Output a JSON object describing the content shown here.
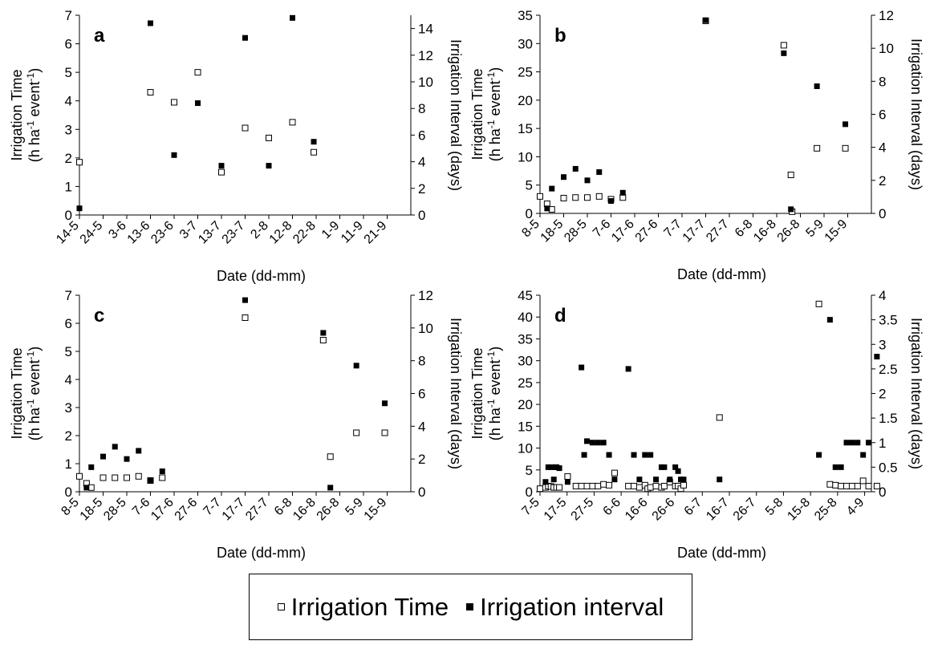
{
  "chart_data": [
    {
      "type": "scatter",
      "panel_label": "a",
      "xlabel": "Date (dd-mm)",
      "ylabel_left": [
        "Irrigation Time",
        "(h ha",
        "-1",
        " event",
        "-1",
        ")"
      ],
      "ylabel_right": "Irrigation Interval (days)",
      "left_ylim": [
        0,
        7
      ],
      "left_ticks": [
        0,
        1,
        2,
        3,
        4,
        5,
        6,
        7
      ],
      "right_ylim": [
        0,
        15
      ],
      "right_ticks": [
        0,
        2,
        4,
        6,
        8,
        10,
        12,
        14
      ],
      "x_tick_labels": [
        "14-5",
        "24-5",
        "3-6",
        "13-6",
        "23-6",
        "3-7",
        "13-7",
        "23-7",
        "2-8",
        "12-8",
        "22-8",
        "1-9",
        "11-9",
        "21-9"
      ],
      "x_domain": [
        0,
        140
      ],
      "series": [
        {
          "name": "Irrigation Time",
          "axis": "left",
          "marker": "open",
          "points": [
            [
              0,
              1.85
            ],
            [
              30,
              4.3
            ],
            [
              40,
              3.95
            ],
            [
              50,
              5.0
            ],
            [
              60,
              1.5
            ],
            [
              70,
              3.05
            ],
            [
              80,
              2.7
            ],
            [
              90,
              3.25
            ],
            [
              99,
              2.2
            ]
          ]
        },
        {
          "name": "Irrigation interval",
          "axis": "right",
          "marker": "filled",
          "points": [
            [
              0,
              0.5
            ],
            [
              30,
              14.4
            ],
            [
              40,
              4.5
            ],
            [
              50,
              8.4
            ],
            [
              60,
              3.7
            ],
            [
              70,
              13.3
            ],
            [
              80,
              3.7
            ],
            [
              90,
              14.8
            ],
            [
              99,
              5.5
            ]
          ]
        }
      ]
    },
    {
      "type": "scatter",
      "panel_label": "b",
      "xlabel": "Date (dd-mm)",
      "ylabel_left": [
        "Irrigation Time",
        "(h ha",
        "-1",
        " event",
        "-1",
        ")"
      ],
      "ylabel_right": "Irrigation Interval (days)",
      "left_ylim": [
        0,
        35
      ],
      "left_ticks": [
        0,
        5,
        10,
        15,
        20,
        25,
        30,
        35
      ],
      "right_ylim": [
        0,
        12
      ],
      "right_ticks": [
        0,
        2,
        4,
        6,
        8,
        10,
        12
      ],
      "x_tick_labels": [
        "8-5",
        "18-5",
        "28-5",
        "7-6",
        "17-6",
        "27-6",
        "7-7",
        "17-7",
        "27-7",
        "6-8",
        "16-8",
        "26-8",
        "5-9",
        "15-9"
      ],
      "x_domain": [
        0,
        140
      ],
      "series": [
        {
          "name": "Irrigation Time",
          "axis": "left",
          "marker": "open",
          "points": [
            [
              0,
              3.0
            ],
            [
              3,
              1.7
            ],
            [
              5,
              0.7
            ],
            [
              10,
              2.7
            ],
            [
              15,
              2.8
            ],
            [
              20,
              2.8
            ],
            [
              25,
              3.0
            ],
            [
              30,
              2.5
            ],
            [
              35,
              2.8
            ],
            [
              70,
              34.0
            ],
            [
              103,
              29.7
            ],
            [
              106,
              6.8
            ],
            [
              106.5,
              0.3
            ],
            [
              117,
              11.5
            ],
            [
              129,
              11.5
            ]
          ]
        },
        {
          "name": "Irrigation interval",
          "axis": "right",
          "marker": "filled",
          "points": [
            [
              3,
              0.3
            ],
            [
              5,
              1.5
            ],
            [
              10,
              2.2
            ],
            [
              15,
              2.7
            ],
            [
              20,
              2.0
            ],
            [
              25,
              2.5
            ],
            [
              30,
              0.75
            ],
            [
              35,
              1.25
            ],
            [
              70,
              11.7
            ],
            [
              103,
              9.7
            ],
            [
              106,
              0.25
            ],
            [
              117,
              7.7
            ],
            [
              129,
              5.4
            ]
          ]
        }
      ]
    },
    {
      "type": "scatter",
      "panel_label": "c",
      "xlabel": "Date (dd-mm)",
      "ylabel_left": [
        "Irrigation Time",
        "(h ha",
        "-1",
        " event",
        "-1",
        ")"
      ],
      "ylabel_right": "Irrigation Interval (days)",
      "left_ylim": [
        0,
        7
      ],
      "left_ticks": [
        0,
        1,
        2,
        3,
        4,
        5,
        6,
        7
      ],
      "right_ylim": [
        0,
        12
      ],
      "right_ticks": [
        0,
        2,
        4,
        6,
        8,
        10,
        12
      ],
      "x_tick_labels": [
        "8-5",
        "18-5",
        "28-5",
        "7-6",
        "17-6",
        "27-6",
        "7-7",
        "17-7",
        "27-7",
        "6-8",
        "16-8",
        "26-8",
        "5-9",
        "15-9"
      ],
      "x_domain": [
        0,
        140
      ],
      "series": [
        {
          "name": "Irrigation Time",
          "axis": "left",
          "marker": "open",
          "points": [
            [
              0,
              0.55
            ],
            [
              3,
              0.3
            ],
            [
              5,
              0.15
            ],
            [
              10,
              0.5
            ],
            [
              15,
              0.5
            ],
            [
              20,
              0.5
            ],
            [
              25,
              0.55
            ],
            [
              30,
              0.4
            ],
            [
              35,
              0.5
            ],
            [
              70,
              6.2
            ],
            [
              103,
              5.4
            ],
            [
              106,
              1.25
            ],
            [
              117,
              2.1
            ],
            [
              129,
              2.1
            ]
          ]
        },
        {
          "name": "Irrigation interval",
          "axis": "right",
          "marker": "filled",
          "points": [
            [
              3,
              0.25
            ],
            [
              5,
              1.5
            ],
            [
              10,
              2.15
            ],
            [
              15,
              2.75
            ],
            [
              20,
              2.0
            ],
            [
              25,
              2.5
            ],
            [
              30,
              0.7
            ],
            [
              35,
              1.25
            ],
            [
              70,
              11.7
            ],
            [
              103,
              9.7
            ],
            [
              106,
              0.25
            ],
            [
              117,
              7.7
            ],
            [
              129,
              5.4
            ]
          ]
        }
      ]
    },
    {
      "type": "scatter",
      "panel_label": "d",
      "xlabel": "Date (dd-mm)",
      "ylabel_left": [
        "Irrigation Time",
        "(h ha",
        "-1",
        " event",
        "-1",
        ")"
      ],
      "ylabel_right": "Irrigation Interval (days)",
      "left_ylim": [
        0,
        45
      ],
      "left_ticks": [
        0,
        5,
        10,
        15,
        20,
        25,
        30,
        35,
        40,
        45
      ],
      "right_ylim": [
        0,
        4
      ],
      "right_ticks": [
        0,
        0.5,
        1,
        1.5,
        2,
        2.5,
        3,
        3.5,
        4
      ],
      "x_tick_labels": [
        "7-5",
        "17-5",
        "27-5",
        "6-6",
        "16-6",
        "26-6",
        "6-7",
        "16-7",
        "26-7",
        "5-8",
        "15-8",
        "25-8",
        "4-9"
      ],
      "x_domain": [
        0,
        120
      ],
      "series": [
        {
          "name": "Irrigation Time",
          "axis": "left",
          "marker": "open",
          "points": [
            [
              0,
              0.7
            ],
            [
              2,
              1.0
            ],
            [
              3,
              1.3
            ],
            [
              4,
              1.2
            ],
            [
              5,
              1.0
            ],
            [
              6,
              1.0
            ],
            [
              7,
              1.0
            ],
            [
              10,
              3.5
            ],
            [
              13,
              1.3
            ],
            [
              15,
              1.3
            ],
            [
              17,
              1.3
            ],
            [
              19,
              1.3
            ],
            [
              21,
              1.3
            ],
            [
              23,
              1.7
            ],
            [
              25,
              1.5
            ],
            [
              27,
              4.3
            ],
            [
              32,
              1.3
            ],
            [
              34,
              1.3
            ],
            [
              36,
              1.0
            ],
            [
              38,
              1.5
            ],
            [
              39,
              0.7
            ],
            [
              40,
              1.0
            ],
            [
              42,
              1.3
            ],
            [
              44,
              1.0
            ],
            [
              45,
              1.3
            ],
            [
              47,
              2.2
            ],
            [
              49,
              1.3
            ],
            [
              50,
              1.3
            ],
            [
              51,
              0.7
            ],
            [
              52,
              1.5
            ],
            [
              65,
              17.0
            ],
            [
              101,
              43.0
            ],
            [
              105,
              1.7
            ],
            [
              107,
              1.5
            ],
            [
              109,
              1.3
            ],
            [
              111,
              1.3
            ],
            [
              113,
              1.3
            ],
            [
              115,
              1.3
            ],
            [
              117,
              2.5
            ],
            [
              119,
              1.3
            ],
            [
              122,
              1.3
            ]
          ]
        },
        {
          "name": "Irrigation interval",
          "axis": "right",
          "marker": "filled",
          "points": [
            [
              2,
              0.2
            ],
            [
              3,
              0.5
            ],
            [
              4,
              0.5
            ],
            [
              5,
              0.25
            ],
            [
              5.5,
              0.5
            ],
            [
              6,
              0.5
            ],
            [
              7,
              0.48
            ],
            [
              10,
              0.2
            ],
            [
              15,
              2.53
            ],
            [
              16,
              0.75
            ],
            [
              17,
              1.03
            ],
            [
              19,
              1.0
            ],
            [
              21,
              1.0
            ],
            [
              23,
              1.0
            ],
            [
              25,
              0.75
            ],
            [
              27,
              0.25
            ],
            [
              32,
              2.5
            ],
            [
              34,
              0.75
            ],
            [
              36,
              0.25
            ],
            [
              38,
              0.75
            ],
            [
              40,
              0.75
            ],
            [
              42,
              0.25
            ],
            [
              44,
              0.5
            ],
            [
              45,
              0.5
            ],
            [
              47,
              0.25
            ],
            [
              49,
              0.5
            ],
            [
              50,
              0.42
            ],
            [
              51,
              0.25
            ],
            [
              52,
              0.25
            ],
            [
              65,
              0.25
            ],
            [
              101,
              0.75
            ],
            [
              105,
              3.5
            ],
            [
              107,
              0.5
            ],
            [
              109,
              0.5
            ],
            [
              111,
              1.0
            ],
            [
              113,
              1.0
            ],
            [
              115,
              1.0
            ],
            [
              117,
              0.75
            ],
            [
              119,
              1.0
            ],
            [
              122,
              2.75
            ]
          ]
        }
      ]
    }
  ],
  "legend": {
    "items": [
      {
        "label": "Irrigation Time",
        "marker": "open"
      },
      {
        "label": "Irrigation interval",
        "marker": "filled"
      }
    ]
  }
}
